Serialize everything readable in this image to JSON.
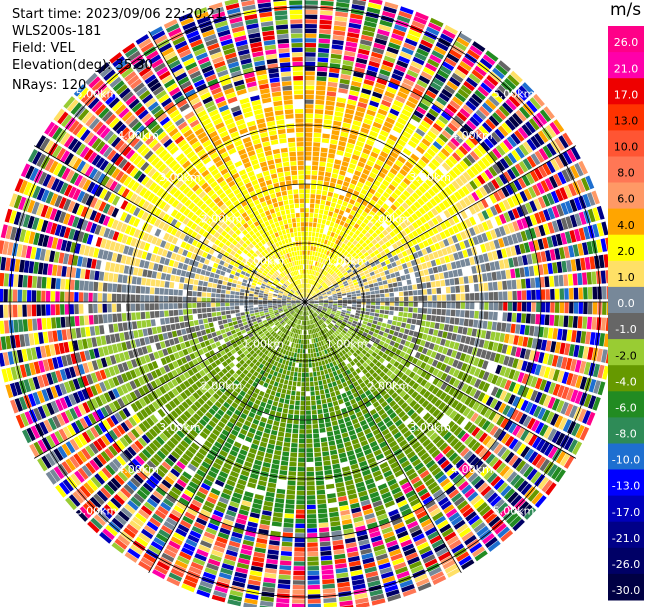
{
  "header": {
    "start_time": "Start time: 2023/09/06 22:20:21",
    "instrument": "WLS200s-181",
    "field": "Field: VEL",
    "elevation": "Elevation(deg): 35.30",
    "nrays": "NRays: 120"
  },
  "colorbar": {
    "unit": "m/s",
    "bins": [
      {
        "label": "26.0",
        "color": "#ff0088"
      },
      {
        "label": "21.0",
        "color": "#ff00aa"
      },
      {
        "label": "17.0",
        "color": "#ee0000"
      },
      {
        "label": "13.0",
        "color": "#ff3300"
      },
      {
        "label": "10.0",
        "color": "#ff5533"
      },
      {
        "label": "8.0",
        "color": "#ff7755"
      },
      {
        "label": "6.0",
        "color": "#ff9966"
      },
      {
        "label": "4.0",
        "color": "#ffa500"
      },
      {
        "label": "2.0",
        "color": "#ffff00"
      },
      {
        "label": "1.0",
        "color": "#ffe066"
      },
      {
        "label": "0.0",
        "color": "#778899"
      },
      {
        "label": "-1.0",
        "color": "#666666"
      },
      {
        "label": "-2.0",
        "color": "#99cc33"
      },
      {
        "label": "-4.0",
        "color": "#669900"
      },
      {
        "label": "-6.0",
        "color": "#228b22"
      },
      {
        "label": "-8.0",
        "color": "#2e8b57"
      },
      {
        "label": "-10.0",
        "color": "#1e6fd0"
      },
      {
        "label": "-13.0",
        "color": "#0000ff"
      },
      {
        "label": "-17.0",
        "color": "#0000bb"
      },
      {
        "label": "-21.0",
        "color": "#000088"
      },
      {
        "label": "-26.0",
        "color": "#000066"
      },
      {
        "label": "-30.0",
        "color": "#000044"
      }
    ]
  },
  "chart_data": {
    "type": "heatmap",
    "projection": "polar PPI",
    "field": "VEL",
    "unit": "m/s",
    "nrays": 120,
    "range_rings_km": [
      1.0,
      2.0,
      3.0,
      4.0,
      5.0
    ],
    "ring_labels": [
      "1.00km",
      "2.00km",
      "3.00km",
      "4.00km",
      "5.00km"
    ],
    "max_range_km": 5.3,
    "azimuth_lines_deg": [
      0,
      30,
      60,
      90,
      120,
      150,
      180,
      210,
      240,
      270,
      300,
      330
    ],
    "pattern_summary": "Positive velocities (yellow/orange, 1-4 m/s) to the north, negative velocities (green, -2 to -8 m/s) to the south, near-zero (gray) along east-west, noisy random colors beyond ~3.5 km range"
  }
}
